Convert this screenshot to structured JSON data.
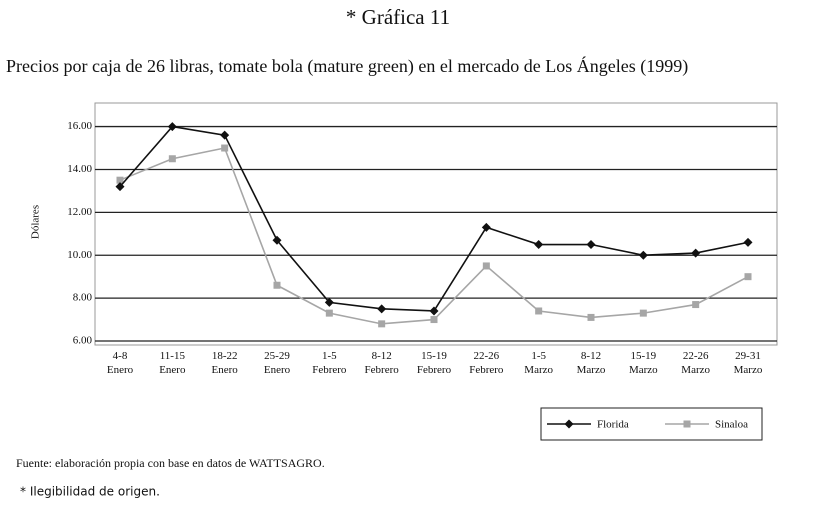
{
  "chart_data": {
    "type": "line",
    "title": "* Gráfica 11",
    "subtitle": "Precios por caja de 26 libras, tomate bola (mature green) en el mercado de Los Ángeles (1999)",
    "y_label": "Dólares",
    "categories": [
      "4-8 Enero",
      "11-15 Enero",
      "18-22 Enero",
      "25-29 Enero",
      "1-5 Febrero",
      "8-12 Febrero",
      "15-19 Febrero",
      "22-26 Febrero",
      "1-5 Marzo",
      "8-12 Marzo",
      "15-19 Marzo",
      "22-26 Marzo",
      "29-31 Marzo"
    ],
    "series": [
      {
        "name": "Florida",
        "color": "#111111",
        "marker": "diamond",
        "values": [
          13.2,
          16.0,
          15.6,
          10.7,
          7.8,
          7.5,
          7.4,
          11.3,
          10.5,
          10.5,
          10.0,
          10.1,
          10.6
        ]
      },
      {
        "name": "Sinaloa",
        "color": "#a6a6a6",
        "marker": "square",
        "values": [
          13.5,
          14.5,
          15.0,
          8.6,
          7.3,
          6.8,
          7.0,
          9.5,
          7.4,
          7.1,
          7.3,
          7.7,
          9.0
        ]
      }
    ],
    "ylim": [
      6,
      17.1
    ],
    "yticks": [
      {
        "value": 6,
        "label": "6.00"
      },
      {
        "value": 8,
        "label": "8.00"
      },
      {
        "value": 10,
        "label": "10.00"
      },
      {
        "value": 12,
        "label": "12.00"
      },
      {
        "value": 14,
        "label": "14.00"
      },
      {
        "value": 16,
        "label": "16.00"
      }
    ],
    "grid": true,
    "legend": "bottom-right",
    "source": "Fuente: elaboración propia con base en datos de WATTSAGRO.",
    "note": "* Ilegibilidad de origen."
  }
}
